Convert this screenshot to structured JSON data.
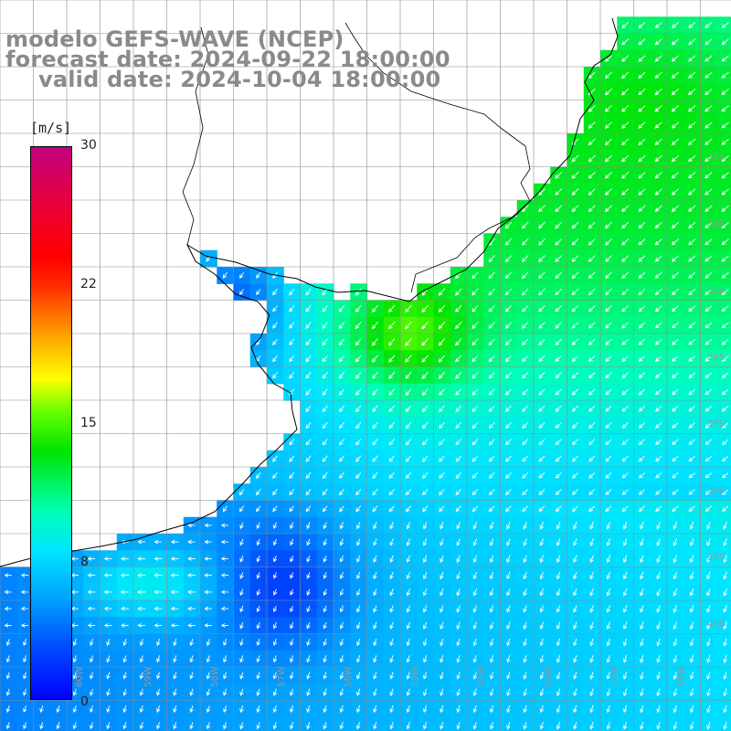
{
  "header": {
    "line1": "modelo GEFS-WAVE (NCEP)",
    "line2": "forecast date: 2024-09-22 18:00:00",
    "line3": "valid date: 2024-10-04 18:00:00"
  },
  "colorbar": {
    "unit": "[m/s]",
    "ticks": [
      "30",
      "22",
      "15",
      "8",
      "0"
    ],
    "range": [
      0,
      30
    ]
  },
  "map_labels": {
    "lat": [
      "33S",
      "34S",
      "35S",
      "36S",
      "37S",
      "38S",
      "39S",
      "40S"
    ],
    "lon": [
      "60W",
      "59W",
      "58W",
      "57W",
      "56W",
      "55W",
      "54W",
      "53W",
      "52W",
      "51W"
    ]
  },
  "colors": {
    "land": "#ffffff",
    "grid": "#8c8c8c",
    "coast": "#000000",
    "arrows": "#ffffff",
    "title": "#8a8a8a"
  },
  "wind_field": {
    "units": "m/s",
    "zones": [
      {
        "area": "northeast coast (Brazil)",
        "speed": 13,
        "direction": "toward SW"
      },
      {
        "area": "off Uruguay coast (34.5S, 54W)",
        "speed": 16,
        "direction": "toward SW"
      },
      {
        "area": "central open ocean",
        "speed": 12,
        "direction": "toward SW"
      },
      {
        "area": "south of 38S",
        "speed": 8,
        "direction": "toward S/SW"
      },
      {
        "area": "Rio de la Plata",
        "speed": 5,
        "direction": "toward W"
      },
      {
        "area": "Bahia Blanca coast",
        "speed": 10,
        "direction": "toward W"
      }
    ]
  }
}
